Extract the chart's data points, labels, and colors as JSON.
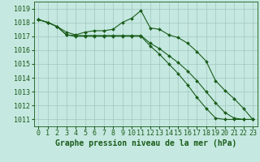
{
  "background_color": "#c5e8e0",
  "grid_color": "#a0c8c0",
  "line_color": "#1a5c1a",
  "marker_color": "#1a5c1a",
  "xlabel": "Graphe pression niveau de la mer (hPa)",
  "xlabel_fontsize": 7,
  "tick_fontsize": 6,
  "xlim": [
    -0.5,
    23.5
  ],
  "ylim": [
    1010.5,
    1019.5
  ],
  "yticks": [
    1011,
    1012,
    1013,
    1014,
    1015,
    1016,
    1017,
    1018,
    1019
  ],
  "xticks": [
    0,
    1,
    2,
    3,
    4,
    5,
    6,
    7,
    8,
    9,
    10,
    11,
    12,
    13,
    14,
    15,
    16,
    17,
    18,
    19,
    20,
    21,
    22,
    23
  ],
  "series": [
    [
      1018.2,
      1018.0,
      1017.7,
      1017.3,
      1017.1,
      1017.3,
      1017.4,
      1017.4,
      1017.5,
      1018.0,
      1018.3,
      1018.85,
      1017.6,
      1017.5,
      1017.1,
      1016.9,
      1016.5,
      1015.9,
      1015.2,
      1013.8,
      1013.1,
      1012.5,
      1011.8,
      1011.0
    ],
    [
      1018.2,
      1018.0,
      1017.7,
      1017.1,
      1017.05,
      1017.05,
      1017.05,
      1017.05,
      1017.05,
      1017.05,
      1017.05,
      1017.05,
      1016.5,
      1016.1,
      1015.6,
      1015.1,
      1014.5,
      1013.8,
      1013.0,
      1012.2,
      1011.5,
      1011.1,
      1011.0,
      1011.0
    ],
    [
      1018.2,
      1018.0,
      1017.7,
      1017.1,
      1017.0,
      1017.0,
      1017.0,
      1017.0,
      1017.0,
      1017.0,
      1017.0,
      1017.0,
      1016.3,
      1015.7,
      1015.0,
      1014.3,
      1013.5,
      1012.6,
      1011.8,
      1011.1,
      1011.0,
      1011.0,
      1011.0,
      1011.0
    ]
  ]
}
